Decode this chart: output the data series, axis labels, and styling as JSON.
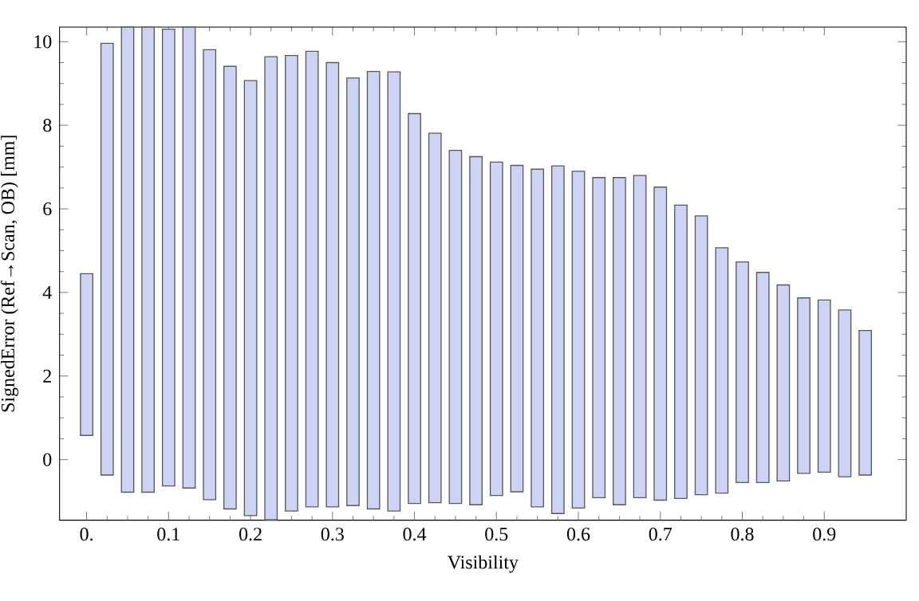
{
  "chart_data": {
    "type": "bar",
    "xlabel": "Visibility",
    "ylabel": "SignedError (Ref→Scan, OB) [mm]",
    "x": [
      0,
      0.025,
      0.05,
      0.075,
      0.1,
      0.125,
      0.15,
      0.175,
      0.2,
      0.225,
      0.25,
      0.275,
      0.3,
      0.325,
      0.35,
      0.375,
      0.4,
      0.425,
      0.45,
      0.475,
      0.5,
      0.525,
      0.55,
      0.575,
      0.6,
      0.625,
      0.65,
      0.675,
      0.7,
      0.725,
      0.75,
      0.775,
      0.8,
      0.825,
      0.85,
      0.875,
      0.9,
      0.925,
      0.95
    ],
    "base": [
      0.58,
      -0.37,
      -0.78,
      -0.78,
      -0.63,
      -0.68,
      -0.96,
      -1.18,
      -1.34,
      -1.44,
      -1.23,
      -1.13,
      -1.13,
      -1.1,
      -1.18,
      -1.23,
      -1.05,
      -1.03,
      -1.05,
      -1.08,
      -0.86,
      -0.77,
      -1.13,
      -1.29,
      -1.16,
      -0.91,
      -1.08,
      -0.91,
      -0.97,
      -0.93,
      -0.84,
      -0.8,
      -0.55,
      -0.55,
      -0.51,
      -0.33,
      -0.3,
      -0.41,
      -0.37
    ],
    "values": [
      3.87,
      10.33,
      11.13,
      11.13,
      10.93,
      11.03,
      10.77,
      10.59,
      10.41,
      11.08,
      10.9,
      10.9,
      10.63,
      10.23,
      10.47,
      10.51,
      9.33,
      8.84,
      8.45,
      8.33,
      7.98,
      7.81,
      8.08,
      8.32,
      8.06,
      7.66,
      7.83,
      7.71,
      7.49,
      7.02,
      6.67,
      5.87,
      5.28,
      5.03,
      4.69,
      4.2,
      4.12,
      3.99,
      3.46
    ],
    "color": "#ccd3f5",
    "xlim": [
      -0.033,
      1.0
    ],
    "ylim": [
      -1.45,
      10.35
    ],
    "xticks": [
      {
        "value": 0,
        "label": "0."
      },
      0.1,
      0.2,
      0.3,
      0.4,
      0.5,
      0.6,
      0.7,
      0.8,
      0.9
    ],
    "yticks": [
      0,
      2,
      4,
      6,
      8,
      10
    ]
  }
}
